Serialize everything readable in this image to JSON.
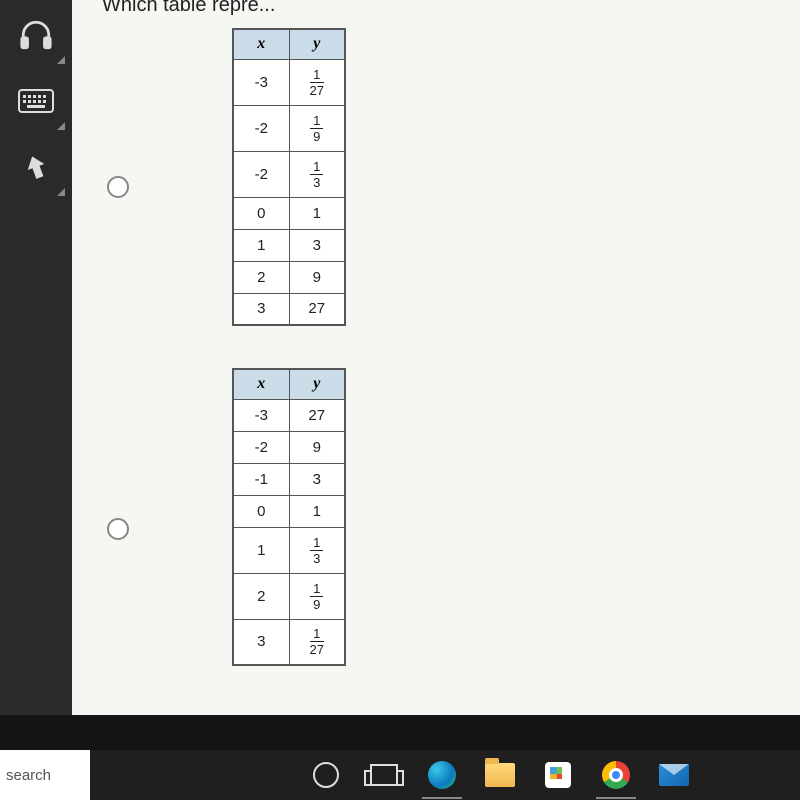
{
  "question_partial_title": "Which table repre...",
  "sidebar": {
    "items": [
      {
        "name": "headphones-icon"
      },
      {
        "name": "keyboard-icon"
      },
      {
        "name": "arrow-up-icon"
      }
    ]
  },
  "tables": [
    {
      "type": "table",
      "columns": [
        "x",
        "y"
      ],
      "header_bg": "#c9dce8",
      "border_color": "#555555",
      "rows": [
        {
          "x": "-3",
          "y": {
            "num": "1",
            "den": "27"
          },
          "tall": true
        },
        {
          "x": "-2",
          "y": {
            "num": "1",
            "den": "9"
          },
          "tall": true
        },
        {
          "x": "-2",
          "y": {
            "num": "1",
            "den": "3"
          },
          "tall": true
        },
        {
          "x": "0",
          "y": "1",
          "tall": false
        },
        {
          "x": "1",
          "y": "3",
          "tall": false
        },
        {
          "x": "2",
          "y": "9",
          "tall": false
        },
        {
          "x": "3",
          "y": "27",
          "tall": false
        }
      ]
    },
    {
      "type": "table",
      "columns": [
        "x",
        "y"
      ],
      "header_bg": "#c9dce8",
      "border_color": "#555555",
      "rows": [
        {
          "x": "-3",
          "y": "27",
          "tall": false
        },
        {
          "x": "-2",
          "y": "9",
          "tall": false
        },
        {
          "x": "-1",
          "y": "3",
          "tall": false
        },
        {
          "x": "0",
          "y": "1",
          "tall": false
        },
        {
          "x": "1",
          "y": {
            "num": "1",
            "den": "3"
          },
          "tall": true
        },
        {
          "x": "2",
          "y": {
            "num": "1",
            "den": "9"
          },
          "tall": true
        },
        {
          "x": "3",
          "y": {
            "num": "1",
            "den": "27"
          },
          "tall": true
        }
      ]
    }
  ],
  "taskbar": {
    "search_text": "search",
    "items": [
      {
        "name": "cortana-icon"
      },
      {
        "name": "task-view-icon"
      },
      {
        "name": "edge-icon"
      },
      {
        "name": "file-explorer-icon"
      },
      {
        "name": "microsoft-store-icon"
      },
      {
        "name": "chrome-icon"
      },
      {
        "name": "mail-icon"
      }
    ]
  },
  "colors": {
    "sidebar_bg": "#2a2a2a",
    "content_bg": "#f5f7f3",
    "taskbar_bg": "#1f1f1f",
    "table_header_bg": "#c9dce8"
  }
}
